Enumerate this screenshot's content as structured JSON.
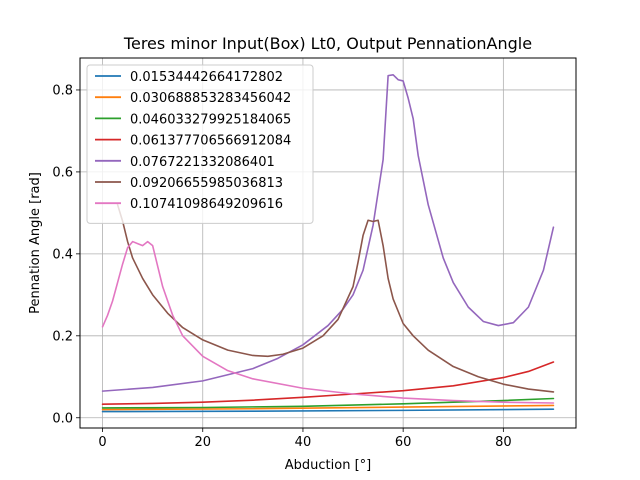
{
  "chart_data": {
    "type": "line",
    "title": "Teres minor Input(Box) Lt0, Output PennationAngle",
    "xlabel": "Abduction [°]",
    "ylabel": "Pennation Angle [rad]",
    "xlim": [
      -4.5,
      94.5
    ],
    "ylim": [
      -0.025,
      0.878
    ],
    "xticks": [
      "0",
      "20",
      "40",
      "60",
      "80"
    ],
    "yticks": [
      "0.0",
      "0.2",
      "0.4",
      "0.6",
      "0.8"
    ],
    "grid": true,
    "legend_position": "top-left",
    "series": [
      {
        "name": "0.01534442664172802",
        "color": "#1f77b4",
        "points": [
          [
            0,
            0.015
          ],
          [
            30,
            0.016
          ],
          [
            60,
            0.018
          ],
          [
            90,
            0.021
          ]
        ]
      },
      {
        "name": "0.030688853283456042",
        "color": "#ff7f0e",
        "points": [
          [
            0,
            0.02
          ],
          [
            30,
            0.022
          ],
          [
            60,
            0.026
          ],
          [
            90,
            0.03
          ]
        ]
      },
      {
        "name": "0.046033279925184065",
        "color": "#2ca02c",
        "points": [
          [
            0,
            0.024
          ],
          [
            20,
            0.025
          ],
          [
            40,
            0.028
          ],
          [
            60,
            0.034
          ],
          [
            80,
            0.042
          ],
          [
            90,
            0.047
          ]
        ]
      },
      {
        "name": "0.061377706566912084",
        "color": "#d62728",
        "points": [
          [
            0,
            0.033
          ],
          [
            10,
            0.035
          ],
          [
            20,
            0.038
          ],
          [
            30,
            0.043
          ],
          [
            40,
            0.05
          ],
          [
            50,
            0.058
          ],
          [
            60,
            0.066
          ],
          [
            70,
            0.078
          ],
          [
            80,
            0.098
          ],
          [
            85,
            0.113
          ],
          [
            90,
            0.136
          ]
        ]
      },
      {
        "name": "0.0767221332086401",
        "color": "#9467bd",
        "points": [
          [
            0,
            0.065
          ],
          [
            10,
            0.074
          ],
          [
            20,
            0.09
          ],
          [
            30,
            0.12
          ],
          [
            35,
            0.145
          ],
          [
            40,
            0.178
          ],
          [
            45,
            0.225
          ],
          [
            48,
            0.265
          ],
          [
            50,
            0.3
          ],
          [
            52,
            0.36
          ],
          [
            54,
            0.47
          ],
          [
            56,
            0.63
          ],
          [
            57,
            0.835
          ],
          [
            58,
            0.837
          ],
          [
            59,
            0.825
          ],
          [
            60,
            0.822
          ],
          [
            61,
            0.78
          ],
          [
            62,
            0.73
          ],
          [
            63,
            0.64
          ],
          [
            65,
            0.52
          ],
          [
            68,
            0.39
          ],
          [
            70,
            0.33
          ],
          [
            73,
            0.27
          ],
          [
            76,
            0.235
          ],
          [
            79,
            0.225
          ],
          [
            82,
            0.232
          ],
          [
            85,
            0.27
          ],
          [
            88,
            0.36
          ],
          [
            90,
            0.465
          ]
        ]
      },
      {
        "name": "0.09206655985036813",
        "color": "#8c564b",
        "points": [
          [
            3,
            0.52
          ],
          [
            4,
            0.48
          ],
          [
            5,
            0.43
          ],
          [
            6,
            0.39
          ],
          [
            8,
            0.34
          ],
          [
            10,
            0.3
          ],
          [
            13,
            0.255
          ],
          [
            16,
            0.22
          ],
          [
            20,
            0.19
          ],
          [
            25,
            0.165
          ],
          [
            30,
            0.152
          ],
          [
            33,
            0.15
          ],
          [
            36,
            0.155
          ],
          [
            40,
            0.17
          ],
          [
            44,
            0.2
          ],
          [
            47,
            0.24
          ],
          [
            50,
            0.32
          ],
          [
            51,
            0.38
          ],
          [
            52,
            0.445
          ],
          [
            53,
            0.482
          ],
          [
            54,
            0.479
          ],
          [
            55,
            0.482
          ],
          [
            56,
            0.42
          ],
          [
            57,
            0.34
          ],
          [
            58,
            0.29
          ],
          [
            60,
            0.23
          ],
          [
            62,
            0.2
          ],
          [
            65,
            0.165
          ],
          [
            70,
            0.125
          ],
          [
            75,
            0.1
          ],
          [
            80,
            0.082
          ],
          [
            85,
            0.07
          ],
          [
            90,
            0.063
          ]
        ]
      },
      {
        "name": "0.10741098649209616",
        "color": "#e377c2",
        "points": [
          [
            0,
            0.222
          ],
          [
            1,
            0.25
          ],
          [
            2,
            0.285
          ],
          [
            3,
            0.33
          ],
          [
            4,
            0.375
          ],
          [
            5,
            0.415
          ],
          [
            6,
            0.43
          ],
          [
            7,
            0.425
          ],
          [
            8,
            0.42
          ],
          [
            9,
            0.43
          ],
          [
            10,
            0.42
          ],
          [
            11,
            0.37
          ],
          [
            12,
            0.32
          ],
          [
            14,
            0.25
          ],
          [
            16,
            0.2
          ],
          [
            20,
            0.15
          ],
          [
            25,
            0.115
          ],
          [
            30,
            0.095
          ],
          [
            40,
            0.072
          ],
          [
            50,
            0.058
          ],
          [
            60,
            0.048
          ],
          [
            70,
            0.042
          ],
          [
            80,
            0.038
          ],
          [
            90,
            0.036
          ]
        ]
      }
    ]
  }
}
